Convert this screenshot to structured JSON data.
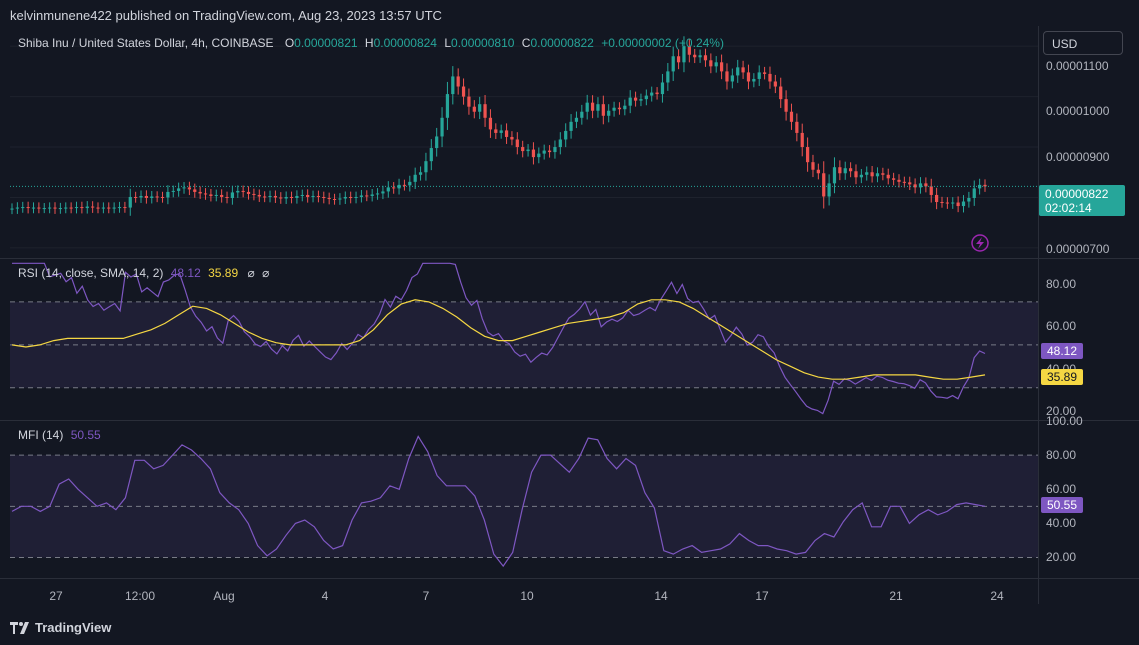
{
  "header": {
    "published": "kelvinmunene422 published on TradingView.com, Aug 23, 2023 13:57 UTC"
  },
  "main_pane": {
    "symbol": "Shiba Inu / United States Dollar, 4h, COINBASE",
    "ohlc": {
      "o_label": "O",
      "o_value": "0.00000821",
      "h_label": "H",
      "h_value": "0.00000824",
      "l_label": "L",
      "l_value": "0.00000810",
      "c_label": "C",
      "c_value": "0.00000822",
      "change": "+0.00000002 (+0.24%)"
    },
    "currency_button": "USD",
    "price_ticks": [
      "0.00001100",
      "0.00001000",
      "0.00000900",
      "0.00000700"
    ],
    "last_price_label": "0.00000822",
    "countdown": "02:02:14",
    "colors": {
      "up": "#26a69a",
      "down": "#ef5350"
    }
  },
  "rsi_pane": {
    "title": "RSI (14, close, SMA, 14, 2)",
    "rsi_value": "48.12",
    "sma_value": "35.89",
    "icons": [
      "⌀",
      "⌀"
    ],
    "ticks": [
      "80.00",
      "60.00",
      "40.00",
      "20.00"
    ],
    "colors": {
      "rsi": "#7e57c2",
      "sma": "#f5d743"
    }
  },
  "mfi_pane": {
    "title": "MFI (14)",
    "mfi_value": "50.55",
    "ticks": [
      "100.00",
      "80.00",
      "60.00",
      "40.00",
      "20.00"
    ],
    "colors": {
      "mfi": "#7e57c2"
    }
  },
  "x_axis": [
    "27",
    "12:00",
    "Aug",
    "4",
    "7",
    "10",
    "14",
    "17",
    "21",
    "24"
  ],
  "footer": {
    "brand": "TradingView"
  },
  "chart_data": {
    "type": "candlestick",
    "interval": "4h",
    "ylim": [
      6.8e-06,
      1.14e-05
    ],
    "close_path": [
      7.78e-06,
      7.8e-06,
      7.81e-06,
      7.79e-06,
      7.8e-06,
      7.79e-06,
      7.79e-06,
      7.8e-06,
      7.78e-06,
      7.79e-06,
      7.8e-06,
      7.79e-06,
      7.81e-06,
      7.79e-06,
      7.82e-06,
      7.8e-06,
      7.79e-06,
      7.8e-06,
      7.79e-06,
      7.8e-06,
      7.81e-06,
      7.8e-06,
      8.01e-06,
      8e-06,
      8.03e-06,
      7.99e-06,
      8.02e-06,
      8.01e-06,
      8e-06,
      8.11e-06,
      8.13e-06,
      8.18e-06,
      8.2e-06,
      8.16e-06,
      8.11e-06,
      8.08e-06,
      8.06e-06,
      8.03e-06,
      8.05e-06,
      8.01e-06,
      7.99e-06,
      8.1e-06,
      8.13e-06,
      8.11e-06,
      8.07e-06,
      8.05e-06,
      8.02e-06,
      8.01e-06,
      8.03e-06,
      8e-06,
      7.98e-06,
      8.01e-06,
      7.99e-06,
      8.03e-06,
      8.05e-06,
      8.01e-06,
      8.03e-06,
      8.01e-06,
      7.99e-06,
      7.97e-06,
      7.96e-06,
      7.98e-06,
      8.01e-06,
      7.99e-06,
      8.01e-06,
      8.04e-06,
      8.03e-06,
      8.06e-06,
      8.08e-06,
      8.12e-06,
      8.2e-06,
      8.18e-06,
      8.25e-06,
      8.24e-06,
      8.31e-06,
      8.45e-06,
      8.5e-06,
      8.72e-06,
      8.98e-06,
      9.21e-06,
      9.58e-06,
      1.005e-05,
      1.04e-05,
      1.02e-05,
      1e-05,
      9.8e-06,
      9.7e-06,
      9.85e-06,
      9.58e-06,
      9.35e-06,
      9.28e-06,
      9.33e-06,
      9.2e-06,
      9.15e-06,
      9e-06,
      8.92e-06,
      8.95e-06,
      8.8e-06,
      8.87e-06,
      8.93e-06,
      8.9e-06,
      9e-06,
      9.15e-06,
      9.32e-06,
      9.5e-06,
      9.58e-06,
      9.7e-06,
      9.88e-06,
      9.72e-06,
      9.85e-06,
      9.62e-06,
      9.72e-06,
      9.78e-06,
      9.75e-06,
      9.82e-06,
      9.98e-06,
      9.92e-06,
      9.95e-06,
      1.002e-05,
      1.008e-05,
      1.005e-05,
      1.028e-05,
      1.05e-05,
      1.08e-05,
      1.068e-05,
      1.1e-05,
      1.083e-05,
      1.078e-05,
      1.082e-05,
      1.072e-05,
      1.06e-05,
      1.068e-05,
      1.05e-05,
      1.03e-05,
      1.042e-05,
      1.058e-05,
      1.048e-05,
      1.03e-05,
      1.035e-05,
      1.048e-05,
      1.045e-05,
      1.03e-05,
      1.02e-05,
      9.95e-06,
      9.7e-06,
      9.5e-06,
      9.28e-06,
      9e-06,
      8.7e-06,
      8.55e-06,
      8.48e-06,
      8.02e-06,
      8.28e-06,
      8.6e-06,
      8.48e-06,
      8.58e-06,
      8.52e-06,
      8.4e-06,
      8.45e-06,
      8.5e-06,
      8.42e-06,
      8.48e-06,
      8.45e-06,
      8.38e-06,
      8.35e-06,
      8.31e-06,
      8.3e-06,
      8.26e-06,
      8.2e-06,
      8.28e-06,
      8.22e-06,
      8.05e-06,
      7.91e-06,
      7.9e-06,
      7.88e-06,
      7.9e-06,
      7.83e-06,
      7.92e-06,
      7.99e-06,
      8.18e-06,
      8.25e-06,
      8.22e-06
    ],
    "rsi_sma_path": [
      50,
      49,
      50,
      52,
      53,
      53,
      53,
      53,
      53,
      55,
      57,
      60,
      64,
      68,
      67,
      64,
      60,
      56,
      53,
      51,
      50,
      50,
      50,
      50,
      50,
      52,
      57,
      64,
      69,
      71,
      70,
      67,
      63,
      58,
      54,
      52,
      52,
      54,
      56,
      58,
      60,
      61,
      62,
      63,
      65,
      69,
      71,
      71,
      70,
      67,
      63,
      59,
      55,
      51,
      47,
      43,
      40,
      37,
      35,
      34,
      34,
      35,
      36,
      36,
      36,
      36,
      35,
      34,
      34,
      35,
      36
    ],
    "mfi_path": [
      47,
      50,
      50,
      47,
      50,
      63,
      66,
      60,
      55,
      50,
      52,
      48,
      55,
      77,
      77,
      72,
      74,
      80,
      86,
      83,
      78,
      72,
      58,
      52,
      48,
      40,
      27,
      21,
      25,
      33,
      40,
      42,
      38,
      30,
      25,
      27,
      42,
      52,
      53,
      55,
      62,
      60,
      78,
      91,
      82,
      68,
      62,
      62,
      62,
      56,
      42,
      22,
      15,
      23,
      48,
      70,
      80,
      80,
      75,
      70,
      78,
      90,
      89,
      78,
      72,
      78,
      74,
      58,
      49,
      24,
      22,
      25,
      27,
      23,
      24,
      25,
      28,
      34,
      30,
      27,
      27,
      25,
      24,
      22,
      23,
      30,
      34,
      32,
      41,
      48,
      52,
      38,
      38,
      50,
      50,
      40,
      45,
      48,
      45,
      47,
      51,
      52,
      51,
      50
    ]
  }
}
